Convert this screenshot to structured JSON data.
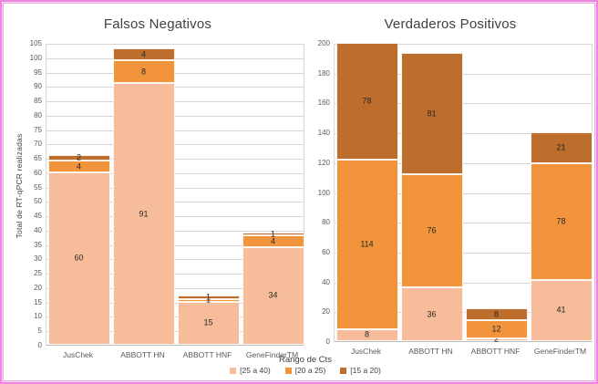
{
  "page": {
    "border_color": "#EE86DF",
    "background": "#FFFFFF"
  },
  "legend": {
    "title": "Rango de Cts",
    "entries": [
      {
        "label": "[25 a 40)",
        "color": "#F7BD9B"
      },
      {
        "label": "[20 a 25)",
        "color": "#F1943C"
      },
      {
        "label": "[15 a 20)",
        "color": "#BD6E2D"
      }
    ]
  },
  "chart_data": [
    {
      "type": "bar",
      "stacked": true,
      "title": "Falsos Negativos",
      "xlabel": "",
      "ylabel": "Total de RT-qPCR realizadas",
      "ylim": [
        0,
        105
      ],
      "ytick_step": 5,
      "grid": true,
      "legend_position": "bottom",
      "categories": [
        "JusChek",
        "ABBOTT HN",
        "ABBOTT HNF",
        "GeneFinderTM"
      ],
      "series": [
        {
          "name": "[25 a 40)",
          "color": "#F7BD9B",
          "values": [
            60,
            91,
            15,
            34
          ]
        },
        {
          "name": "[20 a 25)",
          "color": "#F1943C",
          "values": [
            4,
            8,
            1,
            4
          ]
        },
        {
          "name": "[15 a 20)",
          "color": "#BD6E2D",
          "values": [
            2,
            4,
            1,
            1
          ]
        }
      ]
    },
    {
      "type": "bar",
      "stacked": true,
      "title": "Verdaderos Positivos",
      "xlabel": "",
      "ylabel": "",
      "ylim": [
        0,
        200
      ],
      "ytick_step": 20,
      "grid": true,
      "legend_position": "bottom",
      "categories": [
        "JusChek",
        "ABBOTT HN",
        "ABBOTT HNF",
        "GeneFinderTM"
      ],
      "series": [
        {
          "name": "[25 a 40)",
          "color": "#F7BD9B",
          "values": [
            8,
            36,
            2,
            41
          ]
        },
        {
          "name": "[20 a 25)",
          "color": "#F1943C",
          "values": [
            114,
            76,
            12,
            78
          ]
        },
        {
          "name": "[15 a 20)",
          "color": "#BD6E2D",
          "values": [
            78,
            81,
            8,
            21
          ]
        }
      ]
    }
  ]
}
